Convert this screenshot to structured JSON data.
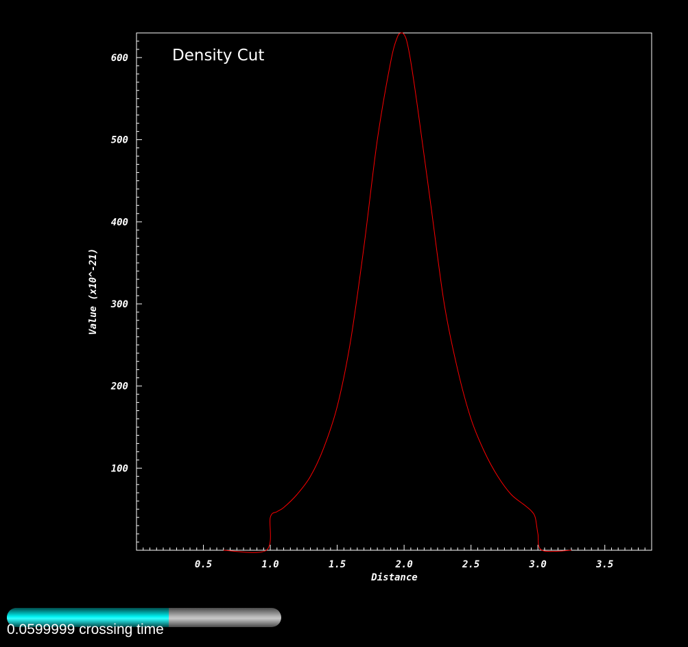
{
  "chart_data": {
    "type": "line",
    "title": "Density Cut",
    "xlabel": "Distance",
    "ylabel": "Value (x10^-21)",
    "xlim": [
      0.0,
      3.85
    ],
    "ylim": [
      0,
      630
    ],
    "x_ticks": [
      "0.5",
      "1.0",
      "1.5",
      "2.0",
      "2.5",
      "3.0",
      "3.5"
    ],
    "y_ticks": [
      "100",
      "200",
      "300",
      "400",
      "500",
      "600"
    ],
    "grid": false,
    "line_color": "#ff0000",
    "series": [
      {
        "x": [
          0.65,
          0.97,
          1.0,
          1.05,
          1.1,
          1.2,
          1.3,
          1.4,
          1.5,
          1.6,
          1.7,
          1.8,
          1.9,
          1.95,
          1.98,
          2.0,
          2.02,
          2.05,
          2.1,
          2.2,
          2.3,
          2.4,
          2.5,
          2.6,
          2.7,
          2.8,
          2.9,
          2.95,
          2.98,
          3.0,
          3.03,
          3.25
        ],
        "y": [
          0,
          0,
          40,
          47,
          52,
          68,
          90,
          125,
          175,
          255,
          370,
          500,
          595,
          625,
          630,
          628,
          620,
          595,
          540,
          420,
          300,
          220,
          160,
          120,
          90,
          68,
          55,
          48,
          40,
          20,
          0,
          0
        ]
      }
    ]
  },
  "time_slider": {
    "label": "0.0599999 crossing time",
    "progress": 0.59,
    "fill_color": "#00ffff"
  }
}
